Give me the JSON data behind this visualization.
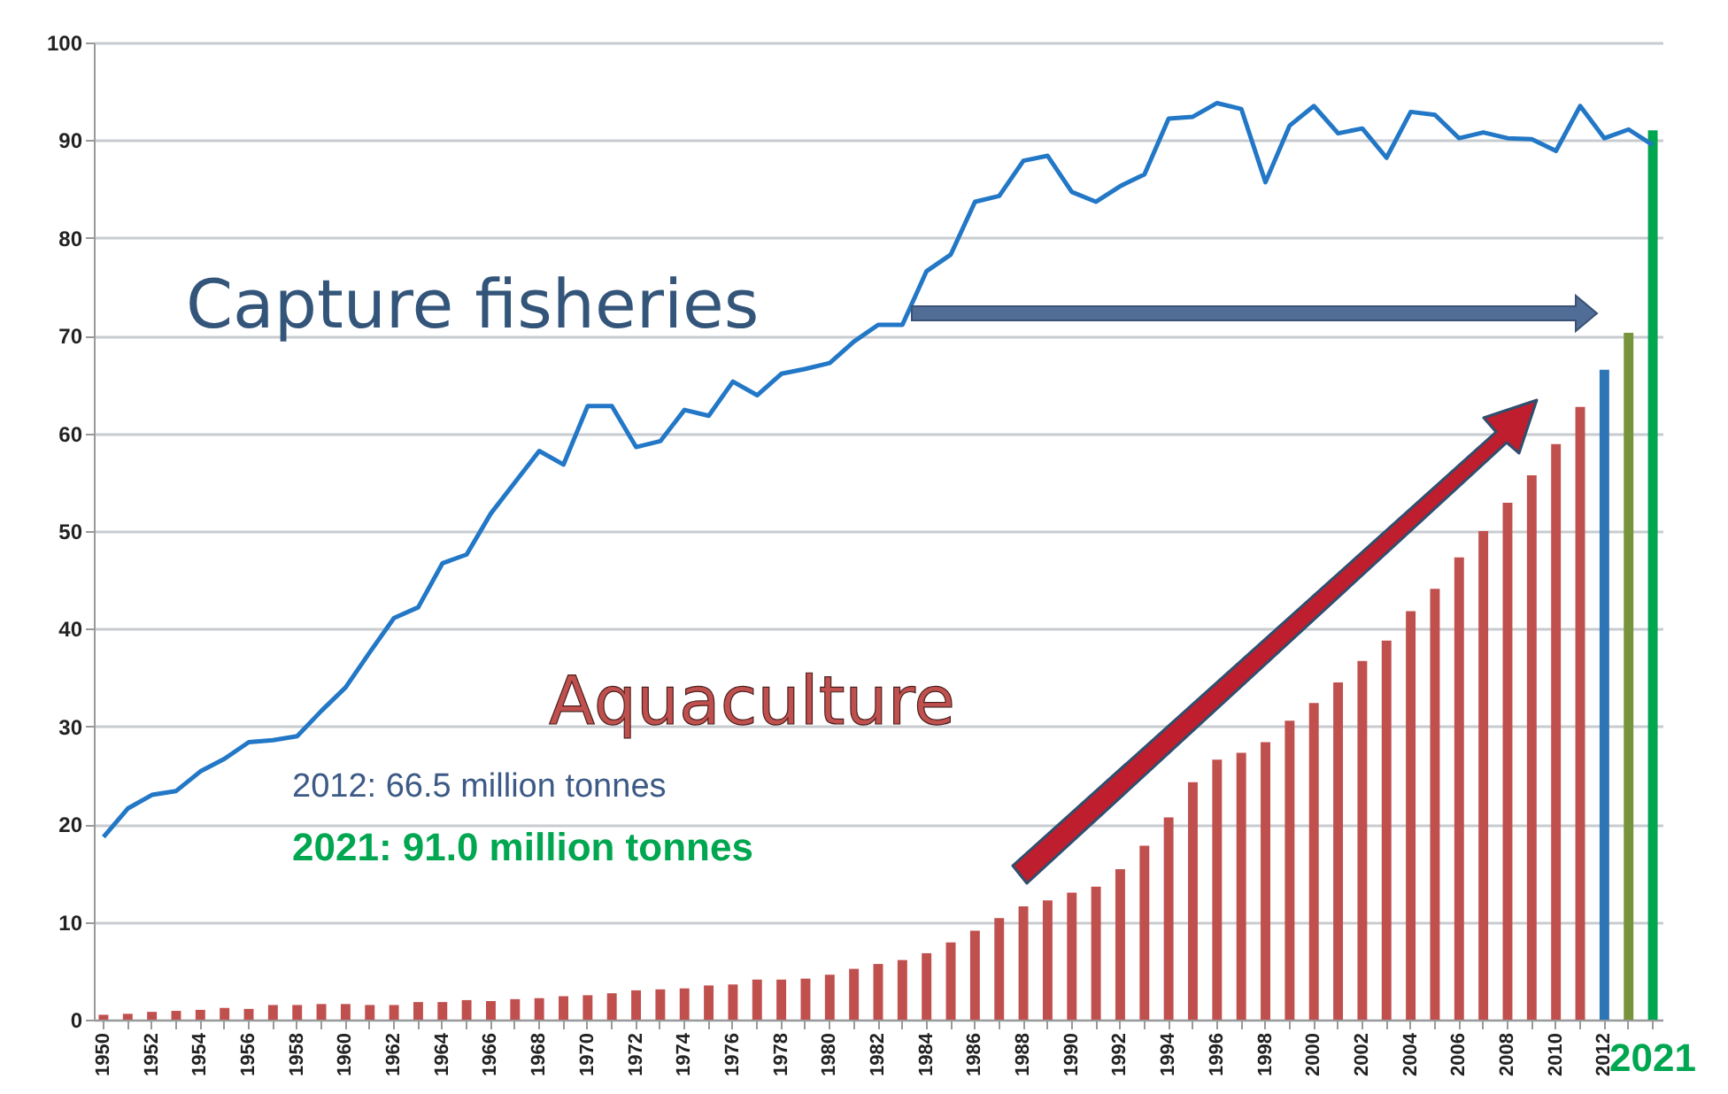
{
  "chart_data": {
    "type": "bar",
    "categories": [
      "1950",
      null,
      "1952",
      null,
      "1954",
      null,
      "1956",
      null,
      "1958",
      null,
      "1960",
      null,
      "1962",
      null,
      "1964",
      null,
      "1966",
      null,
      "1968",
      null,
      "1970",
      null,
      "1972",
      null,
      "1974",
      null,
      "1976",
      null,
      "1978",
      null,
      "1980",
      null,
      "1982",
      null,
      "1984",
      null,
      "1986",
      null,
      "1988",
      null,
      "1990",
      null,
      "1992",
      null,
      "1994",
      null,
      "1996",
      null,
      "1998",
      null,
      "2000",
      null,
      "2002",
      null,
      "2004",
      null,
      "2006",
      null,
      "2008",
      null,
      "2010",
      null,
      "2012",
      null,
      "2021"
    ],
    "series": [
      {
        "name": "Aquaculture",
        "colors": [
          "#c0504d",
          "#c0504d",
          "#c0504d",
          "#c0504d",
          "#c0504d",
          "#c0504d",
          "#c0504d",
          "#c0504d",
          "#c0504d",
          "#c0504d",
          "#c0504d",
          "#c0504d",
          "#c0504d",
          "#c0504d",
          "#c0504d",
          "#c0504d",
          "#c0504d",
          "#c0504d",
          "#c0504d",
          "#c0504d",
          "#c0504d",
          "#c0504d",
          "#c0504d",
          "#c0504d",
          "#c0504d",
          "#c0504d",
          "#c0504d",
          "#c0504d",
          "#c0504d",
          "#c0504d",
          "#c0504d",
          "#c0504d",
          "#c0504d",
          "#c0504d",
          "#c0504d",
          "#c0504d",
          "#c0504d",
          "#c0504d",
          "#c0504d",
          "#c0504d",
          "#c0504d",
          "#c0504d",
          "#c0504d",
          "#c0504d",
          "#c0504d",
          "#c0504d",
          "#c0504d",
          "#c0504d",
          "#c0504d",
          "#c0504d",
          "#c0504d",
          "#c0504d",
          "#c0504d",
          "#c0504d",
          "#c0504d",
          "#c0504d",
          "#c0504d",
          "#c0504d",
          "#c0504d",
          "#c0504d",
          "#c0504d",
          "#c0504d",
          "#2e75b6",
          "#77933c",
          "#00a650"
        ],
        "values": [
          0.5,
          0.6,
          0.8,
          0.9,
          1.0,
          1.2,
          1.1,
          1.5,
          1.5,
          1.6,
          1.6,
          1.5,
          1.5,
          1.8,
          1.8,
          2.0,
          1.9,
          2.1,
          2.2,
          2.4,
          2.5,
          2.7,
          3.0,
          3.1,
          3.2,
          3.5,
          3.6,
          4.1,
          4.1,
          4.2,
          4.6,
          5.2,
          5.7,
          6.1,
          6.8,
          7.9,
          9.1,
          10.4,
          11.6,
          12.2,
          13.0,
          13.6,
          15.4,
          17.8,
          20.7,
          24.3,
          26.6,
          27.3,
          28.4,
          30.6,
          32.4,
          34.5,
          36.7,
          38.8,
          41.8,
          44.1,
          47.3,
          50.0,
          52.9,
          55.7,
          58.9,
          62.7,
          66.5,
          70.3,
          91.0
        ]
      },
      {
        "name": "Capture fisheries",
        "type": "line",
        "color": "#2277c6",
        "values": [
          18.7,
          21.6,
          23.0,
          23.4,
          25.4,
          26.7,
          28.4,
          28.6,
          29.0,
          31.6,
          34.0,
          37.6,
          41.1,
          42.2,
          46.7,
          47.6,
          51.8,
          55.0,
          58.2,
          56.8,
          62.8,
          62.8,
          58.6,
          59.2,
          62.4,
          61.8,
          65.3,
          63.9,
          66.1,
          66.6,
          67.2,
          69.4,
          71.1,
          71.1,
          76.6,
          78.3,
          83.7,
          84.3,
          87.9,
          88.4,
          84.7,
          83.7,
          85.3,
          86.5,
          92.2,
          92.4,
          93.8,
          93.2,
          85.7,
          91.5,
          93.5,
          90.7,
          91.2,
          88.2,
          92.9,
          92.6,
          90.2,
          90.8,
          90.2,
          90.1,
          88.9,
          93.5,
          90.2,
          91.1,
          89.5
        ]
      }
    ],
    "ylim": [
      0,
      100
    ],
    "yticks": [
      0,
      10,
      20,
      30,
      40,
      50,
      60,
      70,
      80,
      90,
      100
    ],
    "grid": "y",
    "annotations": [
      "2012:  66.5 million tonnes",
      "2021:  91.0 million tonnes"
    ]
  }
}
